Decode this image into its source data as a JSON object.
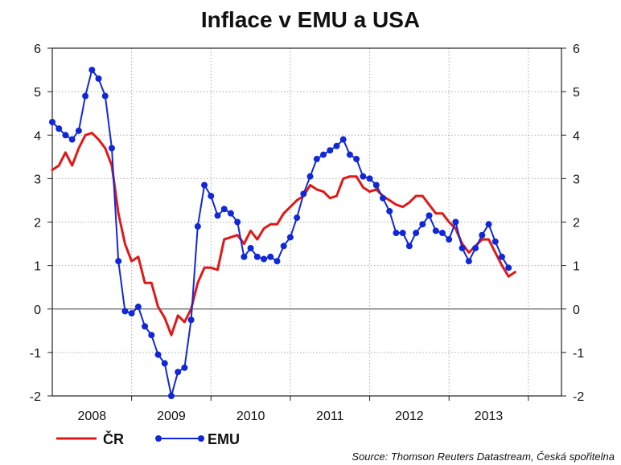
{
  "chart_data": {
    "type": "line",
    "title": "Inflace v EMU a USA",
    "source": "Source: Thomson Reuters Datastream, Česká spořitelna",
    "ylim": [
      -2,
      6
    ],
    "yticks": [
      "-2",
      "-1",
      "0",
      "1",
      "2",
      "3",
      "4",
      "5",
      "6"
    ],
    "x_range": [
      2007.5,
      2013.917
    ],
    "x_labels": [
      {
        "label": "2008",
        "x": 2008.0
      },
      {
        "label": "2009",
        "x": 2009.0
      },
      {
        "label": "2010",
        "x": 2010.0
      },
      {
        "label": "2011",
        "x": 2011.0
      },
      {
        "label": "2012",
        "x": 2012.0
      },
      {
        "label": "2013",
        "x": 2013.0
      }
    ],
    "year_boundaries": [
      2008.5,
      2009.5,
      2010.5,
      2011.5,
      2012.5,
      2013.5
    ],
    "grid": true,
    "legend_position": "bottom-left",
    "series": [
      {
        "name": "ČR",
        "color": "#e01818",
        "marker": "none",
        "x_start": 2007.5,
        "x_step": 0.08333,
        "values": [
          3.2,
          3.3,
          3.6,
          3.3,
          3.7,
          4.0,
          4.05,
          3.9,
          3.7,
          3.3,
          2.2,
          1.5,
          1.1,
          1.2,
          0.6,
          0.6,
          0.05,
          -0.2,
          -0.6,
          -0.15,
          -0.3,
          0.0,
          0.6,
          0.95,
          0.95,
          0.9,
          1.6,
          1.65,
          1.7,
          1.5,
          1.8,
          1.6,
          1.85,
          1.95,
          1.95,
          2.2,
          2.35,
          2.5,
          2.6,
          2.85,
          2.75,
          2.7,
          2.55,
          2.6,
          3.0,
          3.05,
          3.05,
          2.8,
          2.7,
          2.75,
          2.6,
          2.5,
          2.4,
          2.35,
          2.45,
          2.6,
          2.6,
          2.4,
          2.2,
          2.2,
          2.0,
          1.85,
          1.5,
          1.3,
          1.45,
          1.6,
          1.6,
          1.3,
          1.0,
          0.75,
          0.85
        ]
      },
      {
        "name": "EMU",
        "color": "#1028d8",
        "marker": "circle",
        "x_start": 2007.5,
        "x_step": 0.08333,
        "values": [
          4.3,
          4.15,
          4.0,
          3.9,
          4.1,
          4.9,
          5.5,
          5.3,
          4.9,
          3.7,
          1.1,
          -0.05,
          -0.1,
          0.05,
          -0.4,
          -0.6,
          -1.05,
          -1.25,
          -2.0,
          -1.45,
          -1.35,
          -0.25,
          1.9,
          2.85,
          2.6,
          2.15,
          2.3,
          2.2,
          2.0,
          1.2,
          1.4,
          1.2,
          1.15,
          1.2,
          1.1,
          1.45,
          1.65,
          2.1,
          2.65,
          3.05,
          3.45,
          3.55,
          3.65,
          3.75,
          3.9,
          3.55,
          3.45,
          3.05,
          3.0,
          2.85,
          2.55,
          2.25,
          1.75,
          1.75,
          1.45,
          1.75,
          1.95,
          2.15,
          1.8,
          1.75,
          1.6,
          2.0,
          1.4,
          1.1,
          1.4,
          1.7,
          1.95,
          1.55,
          1.2,
          0.95
        ]
      }
    ]
  }
}
